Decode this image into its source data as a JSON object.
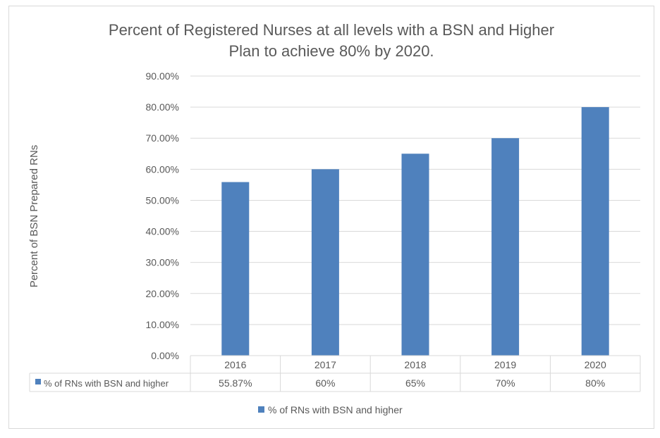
{
  "chart_data": {
    "type": "bar",
    "title": "Percent of Registered Nurses at all levels with a BSN and Higher",
    "subtitle": "Plan to achieve 80% by 2020.",
    "xlabel": "",
    "ylabel": "Percent of BSN Prepared RNs",
    "categories": [
      "2016",
      "2017",
      "2018",
      "2019",
      "2020"
    ],
    "series": [
      {
        "name": "% of RNs with BSN and higher",
        "values": [
          55.87,
          60,
          65,
          70,
          80
        ],
        "labels": [
          "55.87%",
          "60%",
          "65%",
          "70%",
          "80%"
        ],
        "color": "#4f81bd"
      }
    ],
    "ylim": [
      0,
      90
    ],
    "yticks": [
      "0.00%",
      "10.00%",
      "20.00%",
      "30.00%",
      "40.00%",
      "50.00%",
      "60.00%",
      "70.00%",
      "80.00%",
      "90.00%"
    ],
    "grid": true,
    "legend": "bottom",
    "data_table": true
  }
}
